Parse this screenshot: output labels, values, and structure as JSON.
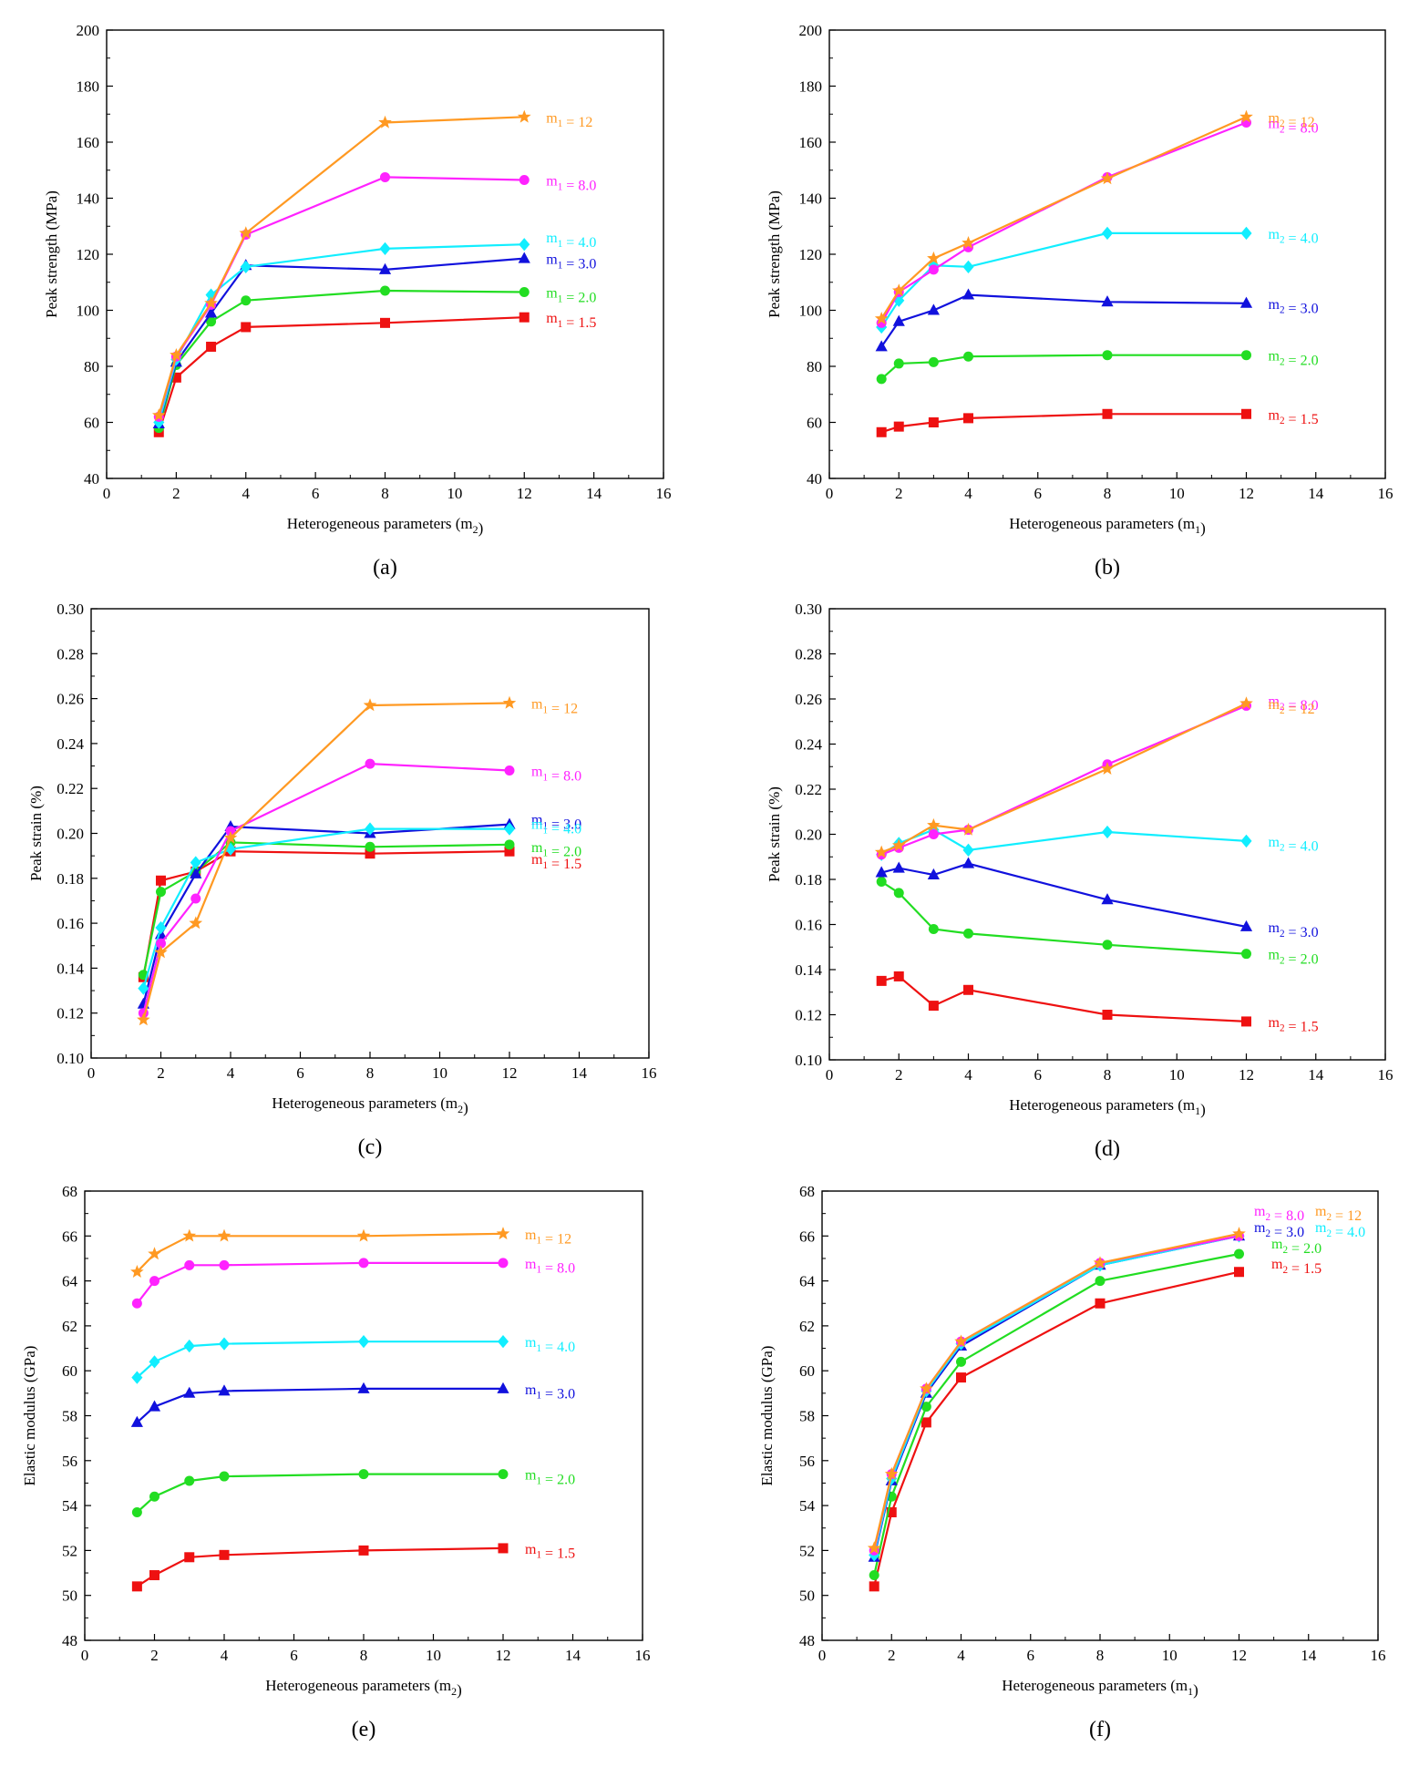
{
  "colors": {
    "m1.5": "#ee1111",
    "m2.0": "#22dd22",
    "m3.0": "#1111dd",
    "m4.0": "#11eeff",
    "m8.0": "#ff22ff",
    "m12": "#ff9922"
  },
  "chart_data": [
    {
      "type": "line",
      "panel": "(a)",
      "xlabel": "Heterogeneous parameters (m2)",
      "ylabel": "Peak strength (MPa)",
      "xlim": [
        0,
        16
      ],
      "xticks": [
        "0",
        "2",
        "4",
        "6",
        "8",
        "10",
        "12",
        "14",
        "16"
      ],
      "ylim": [
        40,
        200
      ],
      "yticks": [
        "40",
        "60",
        "80",
        "100",
        "120",
        "140",
        "160",
        "180",
        "200"
      ],
      "x": [
        1.5,
        2,
        3,
        4,
        8,
        12
      ],
      "series": [
        {
          "name": "m1 = 1.5",
          "marker": "square",
          "color": "#ee1111",
          "values": [
            56.5,
            76,
            87,
            94,
            95.5,
            97.5
          ]
        },
        {
          "name": "m1 = 2.0",
          "marker": "circle",
          "color": "#22dd22",
          "values": [
            58,
            80.5,
            96,
            103.5,
            107,
            106.5
          ]
        },
        {
          "name": "m1 = 3.0",
          "marker": "triangle",
          "color": "#1111dd",
          "values": [
            59.5,
            81.5,
            99,
            116,
            114.5,
            118.5
          ]
        },
        {
          "name": "m1 = 4.0",
          "marker": "diamond",
          "color": "#11eeff",
          "values": [
            60,
            82.5,
            105.5,
            115.5,
            122,
            123.5
          ]
        },
        {
          "name": "m1 = 8.0",
          "marker": "circle",
          "color": "#ff22ff",
          "values": [
            62,
            83.5,
            102,
            127,
            147.5,
            146.5
          ]
        },
        {
          "name": "m1 = 12",
          "marker": "star",
          "color": "#ff9922",
          "values": [
            62.5,
            84,
            102.5,
            127.5,
            167,
            169
          ]
        }
      ]
    },
    {
      "type": "line",
      "panel": "(b)",
      "xlabel": "Heterogeneous parameters (m1)",
      "ylabel": "Peak strength (MPa)",
      "xlim": [
        0,
        16
      ],
      "xticks": [
        "0",
        "2",
        "4",
        "6",
        "8",
        "10",
        "12",
        "14",
        "16"
      ],
      "ylim": [
        40,
        200
      ],
      "yticks": [
        "40",
        "60",
        "80",
        "100",
        "120",
        "140",
        "160",
        "180",
        "200"
      ],
      "x": [
        1.5,
        2,
        3,
        4,
        8,
        12
      ],
      "series": [
        {
          "name": "m2 = 1.5",
          "marker": "square",
          "color": "#ee1111",
          "values": [
            56.5,
            58.5,
            60,
            61.5,
            63,
            63
          ]
        },
        {
          "name": "m2 = 2.0",
          "marker": "circle",
          "color": "#22dd22",
          "values": [
            75.5,
            81,
            81.5,
            83.5,
            84,
            84
          ]
        },
        {
          "name": "m2 = 3.0",
          "marker": "triangle",
          "color": "#1111dd",
          "values": [
            87,
            96,
            100,
            105.5,
            103,
            102.5
          ]
        },
        {
          "name": "m2 = 4.0",
          "marker": "diamond",
          "color": "#11eeff",
          "values": [
            94,
            103.5,
            116,
            115.5,
            127.5,
            127.5
          ]
        },
        {
          "name": "m2 = 8.0",
          "marker": "circle",
          "color": "#ff22ff",
          "values": [
            95.5,
            106.5,
            114.5,
            122.5,
            147.5,
            167
          ]
        },
        {
          "name": "m2 = 12",
          "marker": "star",
          "color": "#ff9922",
          "values": [
            97,
            107,
            118.5,
            124,
            147,
            169
          ]
        }
      ]
    },
    {
      "type": "line",
      "panel": "(c)",
      "xlabel": "Heterogeneous parameters (m2)",
      "ylabel": "Peak strain (%)",
      "xlim": [
        0,
        16
      ],
      "xticks": [
        "0",
        "2",
        "4",
        "6",
        "8",
        "10",
        "12",
        "14",
        "16"
      ],
      "ylim": [
        0.1,
        0.3
      ],
      "yticks": [
        "0.10",
        "0.12",
        "0.14",
        "0.16",
        "0.18",
        "0.20",
        "0.22",
        "0.24",
        "0.26",
        "0.28",
        "0.30"
      ],
      "x": [
        1.5,
        2,
        3,
        4,
        8,
        12
      ],
      "series": [
        {
          "name": "m1 = 1.5",
          "marker": "square",
          "color": "#ee1111",
          "values": [
            0.136,
            0.179,
            0.183,
            0.192,
            0.191,
            0.192
          ]
        },
        {
          "name": "m1 = 2.0",
          "marker": "circle",
          "color": "#22dd22",
          "values": [
            0.137,
            0.174,
            0.183,
            0.196,
            0.194,
            0.195
          ]
        },
        {
          "name": "m1 = 3.0",
          "marker": "triangle",
          "color": "#1111dd",
          "values": [
            0.124,
            0.155,
            0.182,
            0.203,
            0.2,
            0.204
          ]
        },
        {
          "name": "m1 = 4.0",
          "marker": "diamond",
          "color": "#11eeff",
          "values": [
            0.131,
            0.158,
            0.187,
            0.193,
            0.202,
            0.202
          ]
        },
        {
          "name": "m1 = 8.0",
          "marker": "circle",
          "color": "#ff22ff",
          "values": [
            0.12,
            0.151,
            0.171,
            0.201,
            0.231,
            0.228
          ]
        },
        {
          "name": "m1 = 12",
          "marker": "star",
          "color": "#ff9922",
          "values": [
            0.117,
            0.147,
            0.16,
            0.198,
            0.257,
            0.258
          ]
        }
      ]
    },
    {
      "type": "line",
      "panel": "(d)",
      "xlabel": "Heterogeneous parameters (m1)",
      "ylabel": "Peak strain (%)",
      "xlim": [
        0,
        16
      ],
      "xticks": [
        "0",
        "2",
        "4",
        "6",
        "8",
        "10",
        "12",
        "14",
        "16"
      ],
      "ylim": [
        0.1,
        0.3
      ],
      "yticks": [
        "0.10",
        "0.12",
        "0.14",
        "0.16",
        "0.18",
        "0.20",
        "0.22",
        "0.24",
        "0.26",
        "0.28",
        "0.30"
      ],
      "x": [
        1.5,
        2,
        3,
        4,
        8,
        12
      ],
      "series": [
        {
          "name": "m2 = 1.5",
          "marker": "square",
          "color": "#ee1111",
          "values": [
            0.135,
            0.137,
            0.124,
            0.131,
            0.12,
            0.117
          ]
        },
        {
          "name": "m2 = 2.0",
          "marker": "circle",
          "color": "#22dd22",
          "values": [
            0.179,
            0.174,
            0.158,
            0.156,
            0.151,
            0.147
          ]
        },
        {
          "name": "m2 = 3.0",
          "marker": "triangle",
          "color": "#1111dd",
          "values": [
            0.183,
            0.185,
            0.182,
            0.187,
            0.171,
            0.159
          ]
        },
        {
          "name": "m2 = 4.0",
          "marker": "diamond",
          "color": "#11eeff",
          "values": [
            0.191,
            0.196,
            0.202,
            0.193,
            0.201,
            0.197
          ]
        },
        {
          "name": "m2 = 8.0",
          "marker": "circle",
          "color": "#ff22ff",
          "values": [
            0.191,
            0.194,
            0.2,
            0.202,
            0.231,
            0.257
          ]
        },
        {
          "name": "m2 = 12",
          "marker": "star",
          "color": "#ff9922",
          "values": [
            0.192,
            0.195,
            0.204,
            0.202,
            0.229,
            0.258
          ]
        }
      ]
    },
    {
      "type": "line",
      "panel": "(e)",
      "xlabel": "Heterogeneous parameters (m2)",
      "ylabel": "Elastic modulus (GPa)",
      "xlim": [
        0,
        16
      ],
      "xticks": [
        "0",
        "2",
        "4",
        "6",
        "8",
        "10",
        "12",
        "14",
        "16"
      ],
      "ylim": [
        48,
        68
      ],
      "yticks": [
        "48",
        "50",
        "52",
        "54",
        "56",
        "58",
        "60",
        "62",
        "64",
        "66",
        "68"
      ],
      "x": [
        1.5,
        2,
        3,
        4,
        8,
        12
      ],
      "series": [
        {
          "name": "m1 = 1.5",
          "marker": "square",
          "color": "#ee1111",
          "values": [
            50.4,
            50.9,
            51.7,
            51.8,
            52.0,
            52.1
          ]
        },
        {
          "name": "m1 = 2.0",
          "marker": "circle",
          "color": "#22dd22",
          "values": [
            53.7,
            54.4,
            55.1,
            55.3,
            55.4,
            55.4
          ]
        },
        {
          "name": "m1 = 3.0",
          "marker": "triangle",
          "color": "#1111dd",
          "values": [
            57.7,
            58.4,
            59.0,
            59.1,
            59.2,
            59.2
          ]
        },
        {
          "name": "m1 = 4.0",
          "marker": "diamond",
          "color": "#11eeff",
          "values": [
            59.7,
            60.4,
            61.1,
            61.2,
            61.3,
            61.3
          ]
        },
        {
          "name": "m1 = 8.0",
          "marker": "circle",
          "color": "#ff22ff",
          "values": [
            63.0,
            64.0,
            64.7,
            64.7,
            64.8,
            64.8
          ]
        },
        {
          "name": "m1 = 12",
          "marker": "star",
          "color": "#ff9922",
          "values": [
            64.4,
            65.2,
            66.0,
            66.0,
            66.0,
            66.1
          ]
        }
      ]
    },
    {
      "type": "line",
      "panel": "(f)",
      "xlabel": "Heterogeneous parameters (m1)",
      "ylabel": "Elastic modulus (GPa)",
      "xlim": [
        0,
        16
      ],
      "xticks": [
        "0",
        "2",
        "4",
        "6",
        "8",
        "10",
        "12",
        "14",
        "16"
      ],
      "ylim": [
        48,
        68
      ],
      "yticks": [
        "48",
        "50",
        "52",
        "54",
        "56",
        "58",
        "60",
        "62",
        "64",
        "66",
        "68"
      ],
      "x": [
        1.5,
        2,
        3,
        4,
        8,
        12
      ],
      "series": [
        {
          "name": "m2 = 1.5",
          "marker": "square",
          "color": "#ee1111",
          "values": [
            50.4,
            53.7,
            57.7,
            59.7,
            63.0,
            64.4
          ]
        },
        {
          "name": "m2 = 2.0",
          "marker": "circle",
          "color": "#22dd22",
          "values": [
            50.9,
            54.4,
            58.4,
            60.4,
            64.0,
            65.2
          ]
        },
        {
          "name": "m2 = 3.0",
          "marker": "triangle",
          "color": "#1111dd",
          "values": [
            51.7,
            55.1,
            59.0,
            61.1,
            64.7,
            66.0
          ]
        },
        {
          "name": "m2 = 4.0",
          "marker": "diamond",
          "color": "#11eeff",
          "values": [
            51.8,
            55.2,
            59.1,
            61.2,
            64.7,
            66.0
          ]
        },
        {
          "name": "m2 = 8.0",
          "marker": "circle",
          "color": "#ff22ff",
          "values": [
            52.0,
            55.4,
            59.2,
            61.3,
            64.8,
            66.0
          ]
        },
        {
          "name": "m2 = 12",
          "marker": "star",
          "color": "#ff9922",
          "values": [
            52.1,
            55.4,
            59.2,
            61.3,
            64.8,
            66.1
          ]
        }
      ]
    }
  ]
}
